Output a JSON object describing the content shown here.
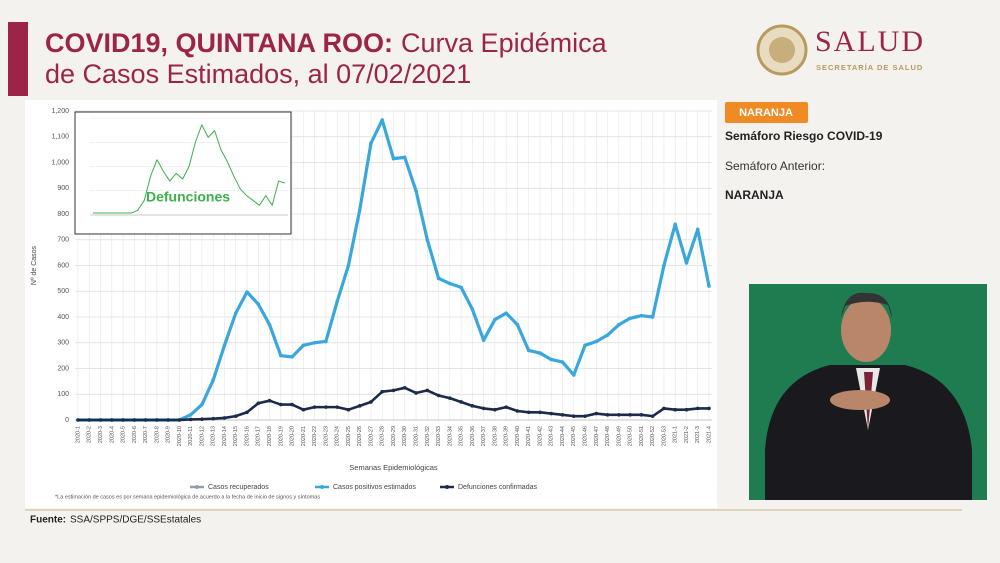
{
  "header": {
    "title_bold": "COVID19, QUINTANA ROO:",
    "title_line1": "Curva Epidémica",
    "title_line2": "de Casos Estimados, al 07/02/2021",
    "logo": "SALUD",
    "logo_sub": "SECRETARÍA DE SALUD"
  },
  "side_panel": {
    "badge": "NARANJA",
    "label": "Semáforo Riesgo COVID-19",
    "previous_label": "Semáforo Anterior:",
    "previous": "NARANJA"
  },
  "chart_data": [
    {
      "type": "line",
      "x_label": "Semanas Epidemiológicas",
      "y_label": "Nº de Casos",
      "categories": [
        "2020-1",
        "2020-2",
        "2020-3",
        "2020-4",
        "2020-5",
        "2020-6",
        "2020-7",
        "2020-8",
        "2020-9",
        "2020-10",
        "2020-11",
        "2020-12",
        "2020-13",
        "2020-14",
        "2020-15",
        "2020-16",
        "2020-17",
        "2020-18",
        "2020-19",
        "2020-20",
        "2020-21",
        "2020-22",
        "2020-23",
        "2020-24",
        "2020-25",
        "2020-26",
        "2020-27",
        "2020-28",
        "2020-29",
        "2020-30",
        "2020-31",
        "2020-32",
        "2020-33",
        "2020-34",
        "2020-35",
        "2020-36",
        "2020-37",
        "2020-38",
        "2020-39",
        "2020-40",
        "2020-41",
        "2020-42",
        "2020-43",
        "2020-44",
        "2020-45",
        "2020-46",
        "2020-47",
        "2020-48",
        "2020-49",
        "2020-50",
        "2020-51",
        "2020-52",
        "2020-53",
        "2021-1",
        "2021-2",
        "2021-3",
        "2021-4"
      ],
      "series": [
        {
          "name": "Casos recuperados",
          "color": "#8f9ea8",
          "values": [
            null,
            null,
            null,
            null,
            null,
            null,
            null,
            null,
            null,
            null,
            null,
            null,
            null,
            null,
            null,
            null,
            null,
            null,
            null,
            null,
            null,
            null,
            null,
            null,
            null,
            null,
            null,
            null,
            null,
            null,
            null,
            null,
            null,
            null,
            null,
            null,
            null,
            null,
            null,
            null,
            null,
            null,
            null,
            null,
            null,
            null,
            null,
            null,
            null,
            null,
            null,
            null,
            null,
            null,
            null,
            null,
            null
          ]
        },
        {
          "name": "Casos positivos estimados",
          "color": "#3aa7dc",
          "values": [
            0,
            0,
            0,
            0,
            0,
            0,
            0,
            0,
            0,
            0,
            20,
            60,
            155,
            290,
            415,
            497,
            450,
            370,
            250,
            245,
            290,
            300,
            305,
            460,
            600,
            815,
            1075,
            1165,
            1015,
            1020,
            890,
            700,
            550,
            530,
            515,
            430,
            310,
            390,
            415,
            370,
            270,
            260,
            235,
            225,
            175,
            290,
            305,
            330,
            370,
            395,
            405,
            400,
            600,
            760,
            610,
            740,
            520
          ]
        },
        {
          "name": "Defunciones confirmadas",
          "color": "#1c2b4a",
          "values": [
            0,
            0,
            0,
            0,
            0,
            0,
            0,
            0,
            0,
            0,
            2,
            3,
            5,
            8,
            15,
            30,
            65,
            75,
            60,
            60,
            40,
            50,
            50,
            50,
            40,
            55,
            70,
            110,
            115,
            125,
            105,
            115,
            95,
            85,
            70,
            55,
            45,
            40,
            50,
            35,
            30,
            30,
            25,
            20,
            15,
            15,
            25,
            20,
            20,
            20,
            20,
            15,
            45,
            40,
            40,
            45,
            45
          ]
        }
      ],
      "ylim": [
        0,
        1200
      ],
      "yticks": [
        0,
        100,
        200,
        300,
        400,
        500,
        600,
        700,
        800,
        900,
        {
          "value": 1000,
          "label": "1,000"
        },
        {
          "value": 1100,
          "label": "1,100"
        },
        {
          "value": 1200,
          "label": "1,200"
        }
      ],
      "grid": true,
      "legend": "bottom"
    },
    {
      "type": "line",
      "annotation": "Defunciones",
      "color": "#3cb04a",
      "categories": [
        null,
        null,
        null,
        null,
        null,
        null,
        null,
        null,
        null,
        null,
        null,
        null,
        null,
        null,
        null,
        null,
        null,
        null,
        null,
        null,
        null,
        null,
        null,
        null,
        null,
        null,
        null,
        null,
        null,
        null,
        null
      ],
      "values": [
        2,
        2,
        2,
        2,
        2,
        2,
        2,
        5,
        15,
        40,
        57,
        45,
        35,
        43,
        37,
        50,
        75,
        93,
        80,
        87,
        67,
        55,
        40,
        27,
        20,
        15,
        10,
        20,
        10,
        35,
        33
      ],
      "ylim": [
        0,
        100
      ],
      "grid": true
    }
  ],
  "note": "*La estimación de casos es por semana epidemiológica de acuerdo a la fecha de inicio de signos y síntomas",
  "source_label": "Fuente:",
  "source": "SSA/SPPS/DGE/SSEstatales"
}
